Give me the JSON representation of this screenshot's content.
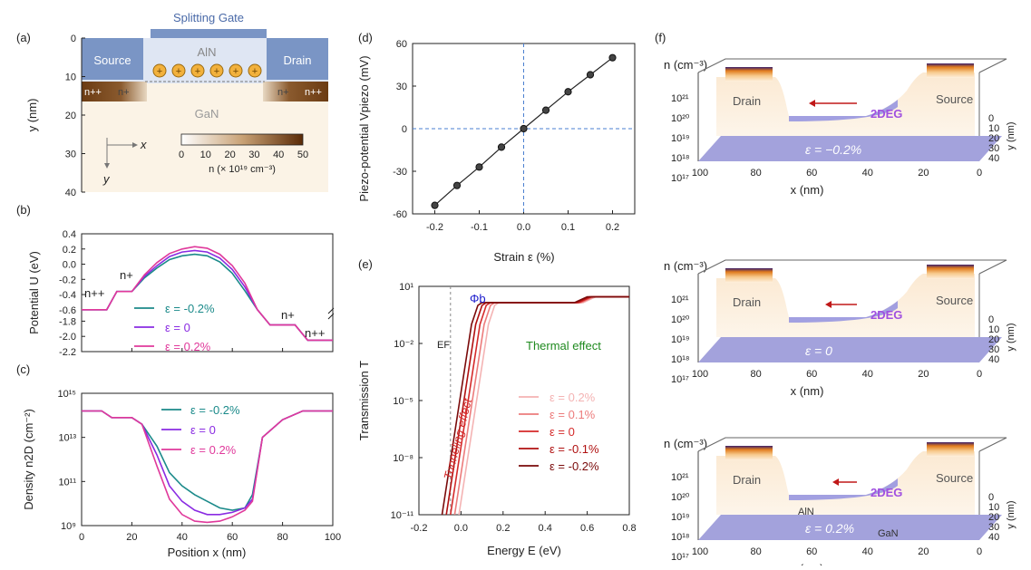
{
  "panels": {
    "a": {
      "tag": "(a)",
      "gate": "Splitting Gate",
      "source": "Source",
      "drain": "Drain",
      "barrier": "AlN",
      "channel": "GaN",
      "nplusplus": "n++",
      "nplus": "n+",
      "axis_x": "x",
      "axis_y": "y",
      "ylabel": "y (nm)",
      "yticks": [
        "0",
        "10",
        "20",
        "30",
        "40"
      ],
      "colorbar_ticks": [
        "0",
        "10",
        "20",
        "30",
        "40",
        "50"
      ],
      "colorbar_label": "n (× 10¹⁹ cm⁻³)",
      "colors": {
        "metal": "#7a95c5",
        "contact": "#6b3b12",
        "dielectric": "#dfe6f3",
        "substrate": "#fbf3e6"
      }
    },
    "b": {
      "tag": "(b)",
      "ylabel": "Potential U (eV)",
      "yticks_top": [
        "0.4",
        "0.2",
        "0.0",
        "-0.2",
        "-0.4",
        "-0.6"
      ],
      "yticks_bottom": [
        "-1.8",
        "-2.0",
        "-2.2"
      ],
      "nplusplus": "n++",
      "nplus": "n+",
      "legend": [
        "ε = -0.2%",
        "ε = 0",
        "ε = 0.2%"
      ]
    },
    "c": {
      "tag": "(c)",
      "ylabel": "Density n2D (cm⁻²)",
      "xlabel": "Position x (nm)",
      "xticks": [
        "0",
        "20",
        "40",
        "60",
        "80",
        "100"
      ],
      "yticks": [
        "10¹⁵",
        "10¹³",
        "10¹¹",
        "10⁹"
      ],
      "legend": [
        "ε = -0.2%",
        "ε = 0",
        "ε = 0.2%"
      ]
    },
    "d": {
      "tag": "(d)",
      "ylabel": "Piezo-potential Vpiezo (mV)",
      "xlabel": "Strain ε (%)",
      "xticks": [
        "-0.2",
        "-0.1",
        "0.0",
        "0.1",
        "0.2"
      ],
      "yticks": [
        "60",
        "30",
        "0",
        "-30",
        "-60"
      ]
    },
    "e": {
      "tag": "(e)",
      "ylabel": "Transmission T",
      "xlabel": "Energy E (eV)",
      "xticks": [
        "-0.2",
        "0.0",
        "0.2",
        "0.4",
        "0.6",
        "0.8"
      ],
      "yticks": [
        "10¹",
        "10⁻²",
        "10⁻⁵",
        "10⁻⁸",
        "10⁻¹¹"
      ],
      "ef": "EF",
      "phi": "Φb",
      "thermal": "Thermal effect",
      "tunneling": "Tunneling effect",
      "legend": [
        "ε = 0.2%",
        "ε = 0.1%",
        "ε = 0",
        "ε = -0.1%",
        "ε = -0.2%"
      ]
    },
    "f": {
      "tag": "(f)",
      "zlabel": "n (cm⁻³)",
      "xlabel": "x (nm)",
      "ylabel": "y (nm)",
      "zticks": [
        "10²¹",
        "10²⁰",
        "10¹⁹",
        "10¹⁸",
        "10¹⁷"
      ],
      "xticks": [
        "100",
        "80",
        "60",
        "40",
        "20",
        "0"
      ],
      "yticks": [
        "0",
        "10",
        "20",
        "30",
        "40"
      ],
      "drain": "Drain",
      "source": "Source",
      "gas": "2DEG",
      "aln": "AlN",
      "gan": "GaN",
      "strains": [
        "ε = −0.2%",
        "ε = 0",
        "ε = 0.2%"
      ]
    }
  },
  "chart_data": [
    {
      "panel": "b",
      "type": "line",
      "xlabel": "Position x (nm)",
      "ylabel": "Potential U (eV)",
      "xlim": [
        0,
        100
      ],
      "x": [
        0,
        10,
        14,
        20,
        25,
        30,
        35,
        40,
        45,
        50,
        55,
        60,
        65,
        70,
        75,
        85,
        90,
        100
      ],
      "series": [
        {
          "name": "ε = -0.2%",
          "color": "#1b8a8a",
          "values": [
            -0.6,
            -0.6,
            -0.36,
            -0.36,
            -0.18,
            -0.05,
            0.06,
            0.11,
            0.13,
            0.11,
            0.03,
            -0.12,
            -0.35,
            -0.6,
            -1.85,
            -1.85,
            -2.05,
            -2.05
          ]
        },
        {
          "name": "ε = 0",
          "color": "#8a2be2",
          "values": [
            -0.6,
            -0.6,
            -0.36,
            -0.36,
            -0.16,
            -0.02,
            0.1,
            0.16,
            0.18,
            0.16,
            0.08,
            -0.07,
            -0.3,
            -0.6,
            -1.85,
            -1.85,
            -2.05,
            -2.05
          ]
        },
        {
          "name": "ε = 0.2%",
          "color": "#e0399b",
          "values": [
            -0.6,
            -0.6,
            -0.36,
            -0.36,
            -0.14,
            0.02,
            0.14,
            0.2,
            0.23,
            0.21,
            0.13,
            -0.02,
            -0.25,
            -0.6,
            -1.85,
            -1.85,
            -2.05,
            -2.05
          ]
        }
      ]
    },
    {
      "panel": "c",
      "type": "line",
      "log_y": true,
      "xlabel": "Position x (nm)",
      "ylabel": "Density n2D (cm⁻²)",
      "xlim": [
        0,
        100
      ],
      "ylim_exponent": [
        9,
        15
      ],
      "x": [
        0,
        8,
        12,
        20,
        24,
        30,
        35,
        40,
        45,
        50,
        55,
        60,
        65,
        68,
        72,
        80,
        88,
        100
      ],
      "series": [
        {
          "name": "ε = -0.2%",
          "color": "#1b8a8a",
          "log10_values": [
            14.2,
            14.2,
            13.9,
            13.9,
            13.6,
            12.6,
            11.4,
            10.8,
            10.4,
            10.1,
            9.8,
            9.7,
            9.8,
            10.4,
            13.0,
            13.8,
            14.2,
            14.2
          ]
        },
        {
          "name": "ε = 0",
          "color": "#8a2be2",
          "log10_values": [
            14.2,
            14.2,
            13.9,
            13.9,
            13.6,
            12.2,
            10.8,
            10.1,
            9.7,
            9.5,
            9.5,
            9.6,
            9.8,
            10.2,
            13.0,
            13.8,
            14.2,
            14.2
          ]
        },
        {
          "name": "ε = 0.2%",
          "color": "#e0399b",
          "log10_values": [
            14.2,
            14.2,
            13.9,
            13.9,
            13.6,
            11.7,
            10.2,
            9.5,
            9.2,
            9.15,
            9.2,
            9.4,
            9.7,
            10.1,
            13.0,
            13.8,
            14.2,
            14.2
          ]
        }
      ]
    },
    {
      "panel": "d",
      "type": "scatter",
      "xlabel": "Strain ε (%)",
      "ylabel": "Piezo-potential Vpiezo (mV)",
      "xlim": [
        -0.25,
        0.25
      ],
      "ylim": [
        -60,
        60
      ],
      "x": [
        -0.2,
        -0.15,
        -0.1,
        -0.05,
        0.0,
        0.05,
        0.1,
        0.15,
        0.2
      ],
      "y": [
        -54,
        -40,
        -27,
        -13,
        0,
        13,
        26,
        38,
        50
      ]
    },
    {
      "panel": "e",
      "type": "line",
      "log_y": true,
      "xlabel": "Energy E (eV)",
      "ylabel": "Transmission T",
      "xlim": [
        -0.2,
        0.8
      ],
      "ylim_exponent": [
        -11,
        1
      ],
      "series": [
        {
          "name": "ε = 0.2%",
          "color": "#f4b3b3",
          "x": [
            -0.01,
            0.13,
            0.16,
            0.18,
            0.58,
            0.62,
            0.64,
            0.8
          ],
          "log10_values": [
            -11,
            -1.0,
            0.0,
            0.15,
            0.15,
            0.35,
            0.45,
            0.45
          ]
        },
        {
          "name": "ε = 0.1%",
          "color": "#ec7b7b",
          "x": [
            -0.03,
            0.11,
            0.14,
            0.16,
            0.57,
            0.61,
            0.63,
            0.8
          ],
          "log10_values": [
            -11,
            -1.0,
            0.0,
            0.15,
            0.15,
            0.35,
            0.45,
            0.45
          ]
        },
        {
          "name": "ε = 0",
          "color": "#d42a2a",
          "x": [
            -0.05,
            0.09,
            0.12,
            0.14,
            0.56,
            0.6,
            0.62,
            0.8
          ],
          "log10_values": [
            -11,
            -1.0,
            0.0,
            0.15,
            0.15,
            0.35,
            0.45,
            0.45
          ]
        },
        {
          "name": "ε = -0.1%",
          "color": "#b01010",
          "x": [
            -0.07,
            0.07,
            0.1,
            0.12,
            0.55,
            0.59,
            0.61,
            0.8
          ],
          "log10_values": [
            -11,
            -1.0,
            0.0,
            0.15,
            0.15,
            0.35,
            0.45,
            0.45
          ]
        },
        {
          "name": "ε = -0.2%",
          "color": "#7a0a0a",
          "x": [
            -0.09,
            0.05,
            0.08,
            0.1,
            0.54,
            0.58,
            0.6,
            0.8
          ],
          "log10_values": [
            -11,
            -1.0,
            0.0,
            0.15,
            0.15,
            0.35,
            0.45,
            0.45
          ]
        }
      ]
    }
  ]
}
